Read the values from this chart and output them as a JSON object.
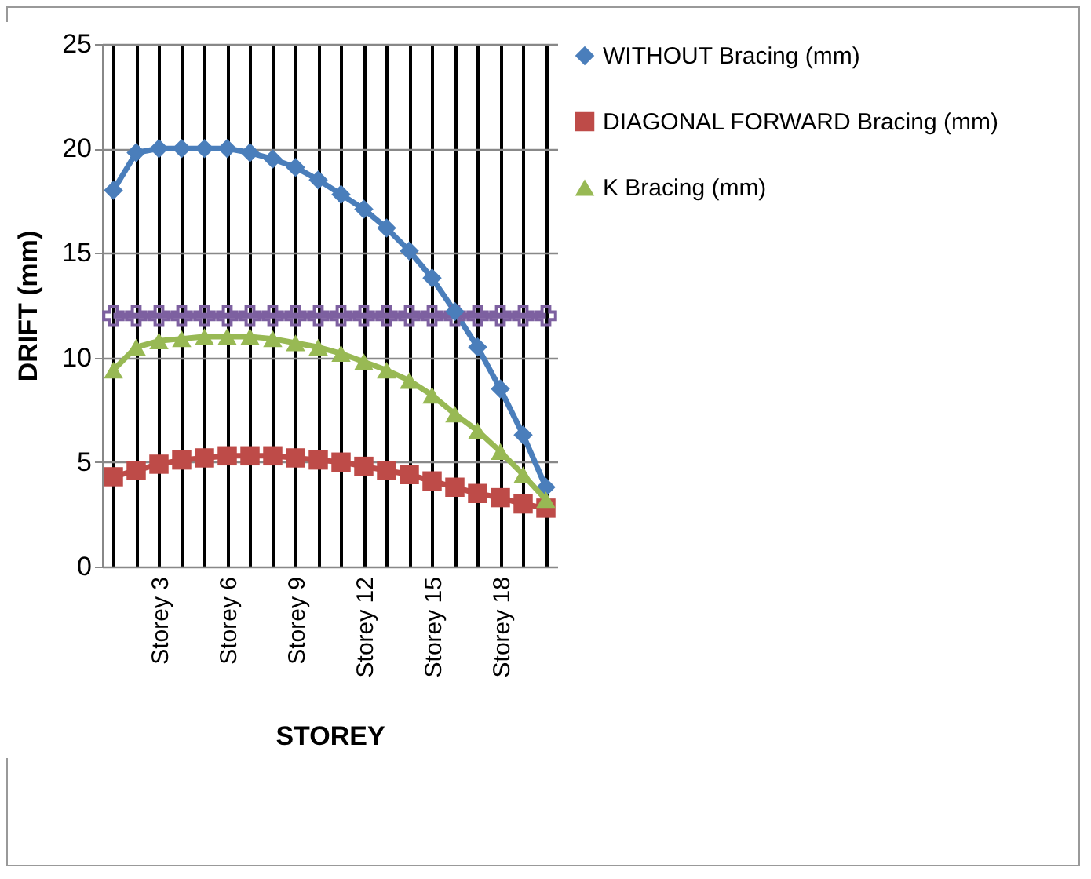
{
  "chart_data": {
    "type": "line",
    "xlabel": "STOREY",
    "ylabel": "DRIFT (mm)",
    "categories": [
      null,
      null,
      "Storey 3",
      null,
      null,
      "Storey 6",
      null,
      null,
      "Storey 9",
      null,
      null,
      "Storey 12",
      null,
      null,
      "Storey 15",
      null,
      null,
      "Storey 18",
      null,
      null
    ],
    "series": [
      {
        "name": "WITHOUT Bracing (mm)",
        "color": "#4a7ebb",
        "marker": "diamond",
        "values": [
          18,
          19.8,
          20,
          20,
          20,
          20,
          19.8,
          19.5,
          19.1,
          18.5,
          17.8,
          17.1,
          16.2,
          15.1,
          13.8,
          12.2,
          10.5,
          8.5,
          6.3,
          3.8
        ]
      },
      {
        "name": "DIAGONAL FORWARD Bracing (mm)",
        "color": "#be4b48",
        "marker": "square",
        "values": [
          4.3,
          4.6,
          4.9,
          5.1,
          5.2,
          5.3,
          5.3,
          5.3,
          5.2,
          5.1,
          5.0,
          4.8,
          4.6,
          4.4,
          4.1,
          3.8,
          3.5,
          3.3,
          3.0,
          2.8
        ]
      },
      {
        "name": "K Bracing (mm)",
        "color": "#98b954",
        "marker": "triangle",
        "values": [
          9.4,
          10.5,
          10.8,
          10.9,
          11.0,
          11.0,
          11.0,
          10.9,
          10.7,
          10.5,
          10.2,
          9.8,
          9.4,
          8.9,
          8.2,
          7.3,
          6.5,
          5.5,
          4.4,
          3.2
        ]
      },
      {
        "color": "#7d60a0",
        "marker": "cross",
        "values": [
          12,
          12,
          12,
          12,
          12,
          12,
          12,
          12,
          12,
          12,
          12,
          12,
          12,
          12,
          12,
          12,
          12,
          12,
          12,
          12
        ]
      }
    ],
    "ylim": [
      0,
      25
    ],
    "yticks": [
      0,
      5,
      10,
      15,
      20,
      25
    ],
    "grid": true,
    "legend": "right",
    "line_style": "solid"
  }
}
